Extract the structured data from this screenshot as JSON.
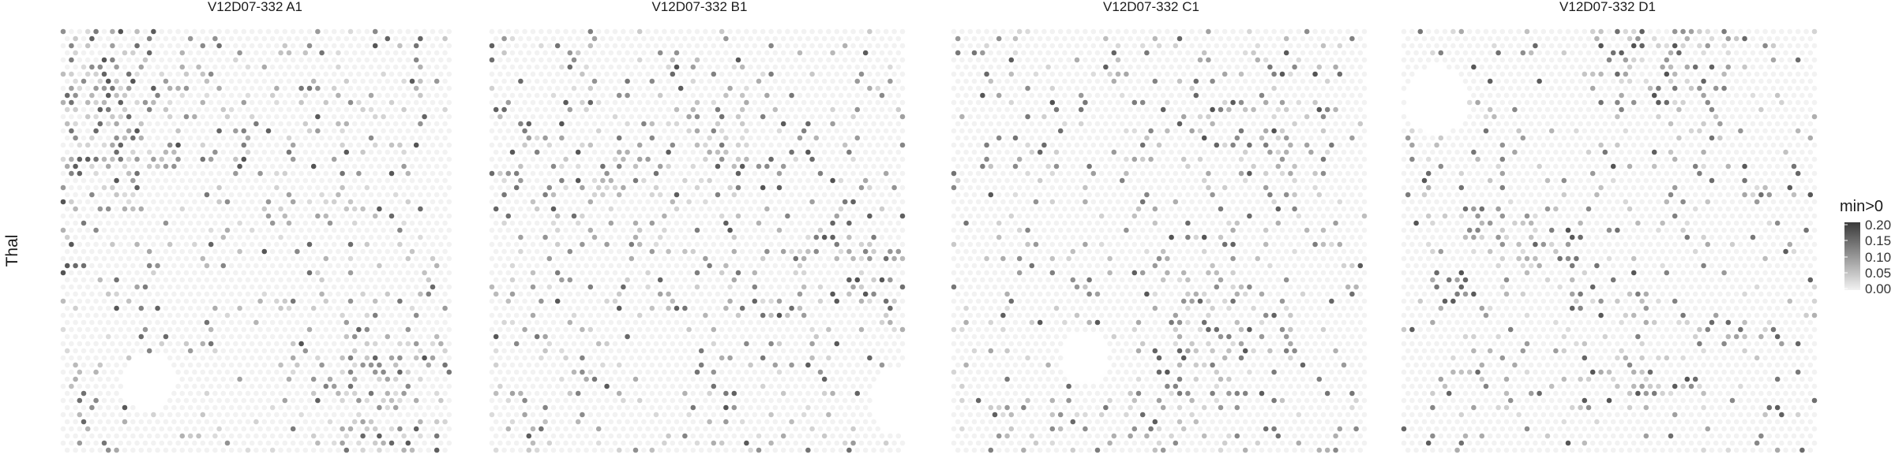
{
  "chart_data": {
    "type": "heatmap",
    "row_label": "Thal",
    "panels": [
      {
        "title": "V12D07-332  A1",
        "hotspots": [
          [
            0.1,
            0.12,
            0.45
          ],
          [
            0.12,
            0.3,
            0.35
          ],
          [
            0.82,
            0.85,
            0.5
          ],
          [
            0.55,
            0.35,
            0.15
          ]
        ],
        "voids": [
          [
            0.22,
            0.84,
            0.07
          ]
        ]
      },
      {
        "title": "V12D07-332  B1",
        "hotspots": [
          [
            0.55,
            0.25,
            0.3
          ],
          [
            0.25,
            0.35,
            0.25
          ],
          [
            0.9,
            0.55,
            0.3
          ]
        ],
        "voids": [
          [
            1.0,
            0.88,
            0.08
          ]
        ]
      },
      {
        "title": "V12D07-332  C1",
        "hotspots": [
          [
            0.62,
            0.7,
            0.45
          ],
          [
            0.72,
            0.25,
            0.35
          ],
          [
            0.45,
            0.95,
            0.3
          ]
        ],
        "voids": [
          [
            0.32,
            0.78,
            0.06
          ]
        ]
      },
      {
        "title": "V12D07-332  D1",
        "hotspots": [
          [
            0.65,
            0.04,
            0.55
          ],
          [
            0.25,
            0.52,
            0.35
          ],
          [
            0.6,
            0.75,
            0.25
          ]
        ],
        "voids": [
          [
            0.08,
            0.16,
            0.08
          ]
        ]
      }
    ],
    "legend": {
      "title": "min>0",
      "ticks": [
        "0.20",
        "0.15",
        "0.10",
        "0.05",
        "0.00"
      ],
      "range": [
        0.0,
        0.2
      ],
      "color_low": "#f2f2f2",
      "color_high": "#3a3a3a"
    }
  }
}
